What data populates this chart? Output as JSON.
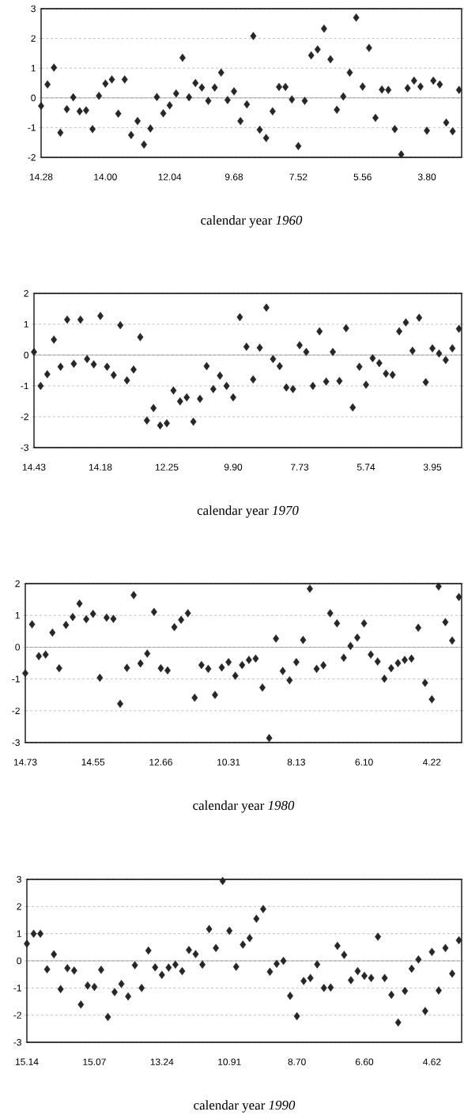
{
  "chart_data": [
    {
      "type": "scatter",
      "xlabel": "calendar year *1960*",
      "color": "#262626",
      "marker": "diamond",
      "grid": "y",
      "ylim": [
        -2,
        3
      ],
      "yticks": [
        -2,
        -1,
        0,
        1,
        2,
        3
      ],
      "ref_lines": [
        {
          "axis": "y",
          "value": 0
        }
      ],
      "categories": [
        "14.28",
        null,
        null,
        null,
        null,
        null,
        null,
        null,
        null,
        null,
        "14.00",
        null,
        null,
        null,
        null,
        null,
        null,
        null,
        null,
        null,
        "12.04",
        null,
        null,
        null,
        null,
        null,
        null,
        null,
        null,
        null,
        "9.68",
        null,
        null,
        null,
        null,
        null,
        null,
        null,
        null,
        null,
        "7.52",
        null,
        null,
        null,
        null,
        null,
        null,
        null,
        null,
        null,
        "5.56",
        null,
        null,
        null,
        null,
        null,
        null,
        null,
        null,
        null,
        "3.80",
        null,
        null,
        null,
        null,
        null
      ],
      "values": [
        -0.27,
        0.45,
        1.02,
        -1.17,
        -0.38,
        0.02,
        -0.45,
        -0.42,
        -1.05,
        0.07,
        0.48,
        0.62,
        -0.53,
        0.62,
        -1.25,
        -0.78,
        -1.57,
        -1.03,
        0.03,
        -0.52,
        -0.25,
        0.15,
        1.35,
        0.02,
        0.5,
        0.35,
        -0.1,
        0.35,
        0.85,
        -0.07,
        0.22,
        -0.78,
        -0.22,
        2.08,
        -1.07,
        -1.35,
        -0.45,
        0.37,
        0.37,
        -0.05,
        -1.62,
        -0.1,
        1.43,
        1.63,
        2.33,
        1.3,
        -0.4,
        0.05,
        0.85,
        2.7,
        0.38,
        1.68,
        -0.67,
        0.28,
        0.27,
        -1.05,
        -1.9,
        0.33,
        0.58,
        0.38,
        -1.1,
        0.58,
        0.45,
        -0.83,
        -1.12,
        0.27
      ]
    },
    {
      "type": "scatter",
      "xlabel": "calendar year *1970*",
      "color": "#262626",
      "marker": "diamond",
      "grid": "y",
      "ylim": [
        -3,
        2
      ],
      "yticks": [
        -3,
        -2,
        -1,
        0,
        1,
        2
      ],
      "ref_lines": [
        {
          "axis": "y",
          "value": 0
        }
      ],
      "categories": [
        "14.43",
        null,
        null,
        null,
        null,
        null,
        null,
        null,
        null,
        null,
        "14.18",
        null,
        null,
        null,
        null,
        null,
        null,
        null,
        null,
        null,
        "12.25",
        null,
        null,
        null,
        null,
        null,
        null,
        null,
        null,
        null,
        "9.90",
        null,
        null,
        null,
        null,
        null,
        null,
        null,
        null,
        null,
        "7.73",
        null,
        null,
        null,
        null,
        null,
        null,
        null,
        null,
        null,
        "5.74",
        null,
        null,
        null,
        null,
        null,
        null,
        null,
        null,
        null,
        "3.95",
        null,
        null,
        null,
        null
      ],
      "values": [
        0.1,
        -1.0,
        -0.62,
        0.5,
        -0.38,
        1.15,
        -0.28,
        1.15,
        -0.13,
        -0.3,
        1.27,
        -0.38,
        -0.65,
        0.97,
        -0.82,
        -0.47,
        0.58,
        -2.12,
        -1.72,
        -2.28,
        -2.21,
        -1.15,
        -1.5,
        -1.37,
        -2.16,
        -1.42,
        -0.36,
        -1.1,
        -0.67,
        -1.0,
        -1.37,
        1.23,
        0.27,
        -0.79,
        0.24,
        1.54,
        -0.13,
        -0.36,
        -1.05,
        -1.1,
        0.32,
        0.1,
        -1.0,
        0.77,
        -0.86,
        0.1,
        -0.84,
        0.87,
        -1.7,
        -0.38,
        -0.96,
        -0.1,
        -0.26,
        -0.6,
        -0.64,
        0.77,
        1.06,
        0.14,
        1.21,
        -0.88,
        0.22,
        0.05,
        -0.16,
        0.22,
        0.85
      ]
    },
    {
      "type": "scatter",
      "xlabel": "calendar year *1980*",
      "color": "#262626",
      "marker": "diamond",
      "grid": "y",
      "ylim": [
        -3,
        2
      ],
      "yticks": [
        -3,
        -2,
        -1,
        0,
        1,
        2
      ],
      "ref_lines": [
        {
          "axis": "y",
          "value": 0
        }
      ],
      "categories": [
        "14.73",
        null,
        null,
        null,
        null,
        null,
        null,
        null,
        null,
        null,
        "14.55",
        null,
        null,
        null,
        null,
        null,
        null,
        null,
        null,
        null,
        "12.66",
        null,
        null,
        null,
        null,
        null,
        null,
        null,
        null,
        null,
        "10.31",
        null,
        null,
        null,
        null,
        null,
        null,
        null,
        null,
        null,
        "8.13",
        null,
        null,
        null,
        null,
        null,
        null,
        null,
        null,
        null,
        "6.10",
        null,
        null,
        null,
        null,
        null,
        null,
        null,
        null,
        null,
        "4.22",
        null,
        null,
        null,
        null
      ],
      "values": [
        -0.82,
        0.72,
        -0.28,
        -0.23,
        0.46,
        -0.66,
        0.7,
        0.95,
        1.37,
        0.88,
        1.05,
        -0.96,
        0.93,
        0.89,
        -1.78,
        -0.65,
        1.64,
        -0.51,
        -0.2,
        1.11,
        -0.66,
        -0.73,
        0.63,
        0.86,
        1.07,
        -1.59,
        -0.56,
        -0.68,
        -1.5,
        -0.64,
        -0.47,
        -0.9,
        -0.56,
        -0.4,
        -0.36,
        -1.27,
        -2.86,
        0.27,
        -0.75,
        -1.04,
        -0.47,
        0.23,
        1.84,
        -0.68,
        -0.57,
        1.07,
        0.75,
        -0.33,
        0.04,
        0.3,
        0.75,
        -0.23,
        -0.45,
        -0.99,
        -0.66,
        -0.5,
        -0.4,
        -0.36,
        0.61,
        -1.12,
        -1.64,
        1.91,
        0.79,
        0.21,
        1.58
      ]
    },
    {
      "type": "scatter",
      "xlabel": "calendar year *1990*",
      "color": "#262626",
      "marker": "diamond",
      "grid": "y",
      "ylim": [
        -3,
        3
      ],
      "yticks": [
        -3,
        -2,
        -1,
        0,
        1,
        2,
        3
      ],
      "ref_lines": [
        {
          "axis": "y",
          "value": 0
        }
      ],
      "categories": [
        "15.14",
        null,
        null,
        null,
        null,
        null,
        null,
        null,
        null,
        null,
        "15.07",
        null,
        null,
        null,
        null,
        null,
        null,
        null,
        null,
        null,
        "13.24",
        null,
        null,
        null,
        null,
        null,
        null,
        null,
        null,
        null,
        "10.91",
        null,
        null,
        null,
        null,
        null,
        null,
        null,
        null,
        null,
        "8.70",
        null,
        null,
        null,
        null,
        null,
        null,
        null,
        null,
        null,
        "6.60",
        null,
        null,
        null,
        null,
        null,
        null,
        null,
        null,
        null,
        "4.62",
        null,
        null,
        null,
        null
      ],
      "values": [
        0.63,
        1.0,
        1.0,
        -0.31,
        0.24,
        -1.04,
        -0.27,
        -0.36,
        -1.61,
        -0.91,
        -0.96,
        -0.33,
        -2.07,
        -1.15,
        -0.85,
        -1.31,
        -0.16,
        -1.0,
        0.38,
        -0.24,
        -0.52,
        -0.25,
        -0.14,
        -0.38,
        0.4,
        0.25,
        -0.14,
        1.17,
        0.47,
        2.94,
        1.11,
        -0.22,
        0.6,
        0.84,
        1.55,
        1.91,
        -0.4,
        -0.11,
        0.0,
        -1.29,
        -2.04,
        -0.74,
        -0.63,
        -0.13,
        -1.0,
        -0.98,
        0.55,
        0.22,
        -0.71,
        -0.38,
        -0.55,
        -0.63,
        0.89,
        -0.63,
        -1.25,
        -2.27,
        -1.11,
        -0.29,
        0.05,
        -1.85,
        0.33,
        -1.09,
        0.47,
        -0.47,
        0.76
      ]
    }
  ]
}
